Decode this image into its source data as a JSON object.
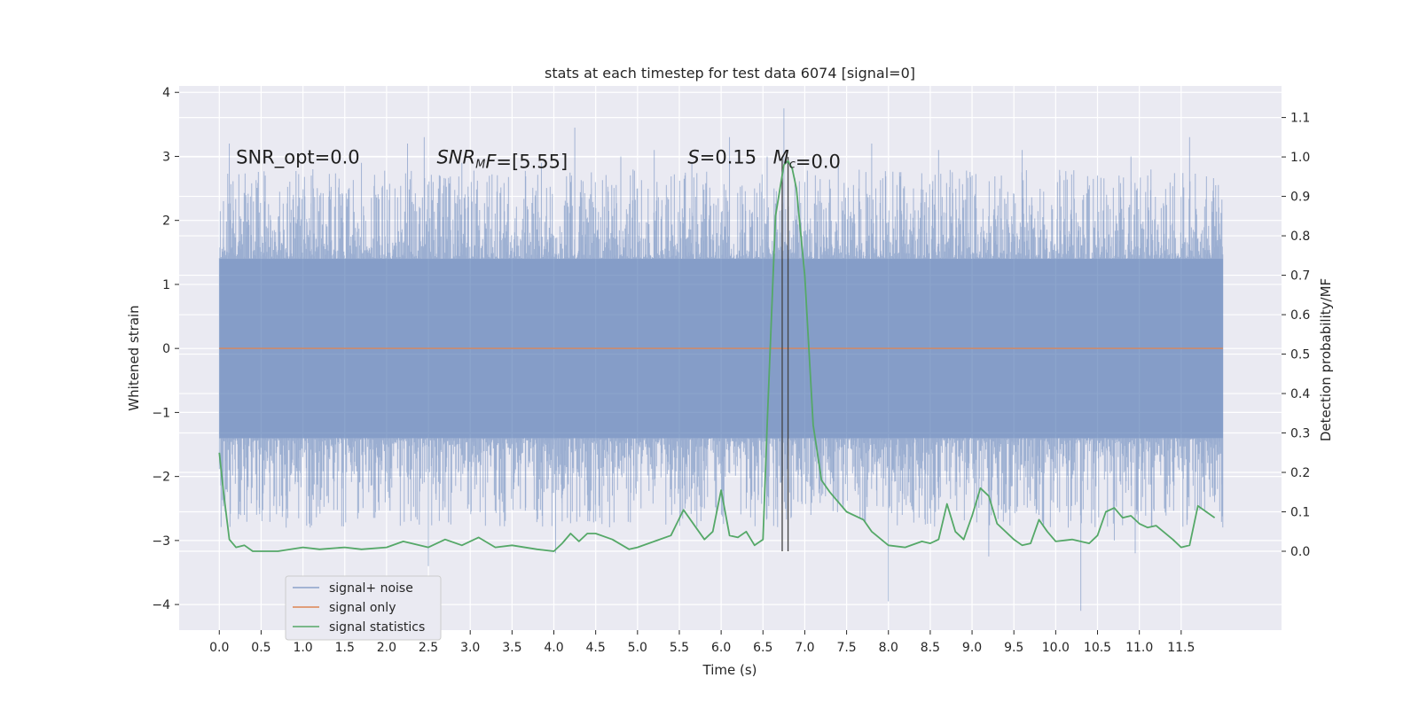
{
  "chart_data": {
    "type": "line",
    "title": "stats at each timestep for test data 6074 [signal=0]",
    "xlabel": "Time (s)",
    "ylabel": "Whitened strain",
    "y2label": "Detection probability/MF",
    "xlim": [
      -0.48,
      12.7
    ],
    "ylim": [
      -4.4,
      4.1
    ],
    "y2lim": [
      -0.2,
      1.18
    ],
    "x_ticks": [
      0.0,
      0.5,
      1.0,
      1.5,
      2.0,
      2.5,
      3.0,
      3.5,
      4.0,
      4.5,
      5.0,
      5.5,
      6.0,
      6.5,
      7.0,
      7.5,
      8.0,
      8.5,
      9.0,
      9.5,
      10.0,
      10.5,
      11.0,
      11.5
    ],
    "x_tick_labels": [
      "0.0",
      "0.5",
      "1.0",
      "1.5",
      "2.0",
      "2.5",
      "3.0",
      "3.5",
      "4.0",
      "4.5",
      "5.0",
      "5.5",
      "6.0",
      "6.5",
      "7.0",
      "7.5",
      "8.0",
      "8.5",
      "9.0",
      "9.5",
      "10.0",
      "10.5",
      "11.0",
      "11.5"
    ],
    "y_ticks": [
      -4,
      -3,
      -2,
      -1,
      0,
      1,
      2,
      3,
      4
    ],
    "y_tick_labels": [
      "−4",
      "−3",
      "−2",
      "−1",
      "0",
      "1",
      "2",
      "3",
      "4"
    ],
    "y2_ticks": [
      0.0,
      0.1,
      0.2,
      0.3,
      0.4,
      0.5,
      0.6,
      0.7,
      0.8,
      0.9,
      1.0,
      1.1
    ],
    "y2_tick_labels": [
      "0.0",
      "0.1",
      "0.2",
      "0.3",
      "0.4",
      "0.5",
      "0.6",
      "0.7",
      "0.8",
      "0.9",
      "1.0",
      "1.1"
    ],
    "grid": true,
    "legend_position": "bottom-left",
    "series": [
      {
        "name": "signal+ noise",
        "color": "#4c72b0",
        "axis": "left",
        "kind": "noise",
        "x_range": [
          0.0,
          12.0
        ],
        "envelope_min": [
          [
            0.0,
            -1.4
          ],
          [
            12.0,
            -1.4
          ]
        ],
        "envelope_max": [
          [
            0.0,
            1.4
          ],
          [
            12.0,
            1.4
          ]
        ],
        "spikes": [
          [
            0.12,
            3.2
          ],
          [
            0.05,
            2.3
          ],
          [
            0.3,
            -2.6
          ],
          [
            0.55,
            2.7
          ],
          [
            0.8,
            -2.8
          ],
          [
            1.1,
            2.7
          ],
          [
            1.3,
            -2.3
          ],
          [
            1.7,
            2.9
          ],
          [
            1.9,
            -2.4
          ],
          [
            2.1,
            2.5
          ],
          [
            2.25,
            3.2
          ],
          [
            2.45,
            3.3
          ],
          [
            2.5,
            -3.4
          ],
          [
            2.7,
            -2.4
          ],
          [
            2.9,
            2.9
          ],
          [
            3.2,
            2.6
          ],
          [
            3.35,
            -2.3
          ],
          [
            3.6,
            -2.3
          ],
          [
            3.85,
            2.9
          ],
          [
            4.02,
            -3.2
          ],
          [
            4.1,
            -2.7
          ],
          [
            4.2,
            2.6
          ],
          [
            4.25,
            3.45
          ],
          [
            4.45,
            2.5
          ],
          [
            4.5,
            -2.7
          ],
          [
            4.7,
            -2.3
          ],
          [
            4.8,
            3.0
          ],
          [
            5.0,
            2.5
          ],
          [
            5.2,
            3.1
          ],
          [
            5.4,
            -2.2
          ],
          [
            5.65,
            2.9
          ],
          [
            5.8,
            -2.5
          ],
          [
            6.1,
            3.3
          ],
          [
            6.3,
            -2.5
          ],
          [
            6.4,
            2.5
          ],
          [
            6.55,
            3.0
          ],
          [
            6.75,
            3.75
          ],
          [
            6.8,
            -3.0
          ],
          [
            7.0,
            2.6
          ],
          [
            7.2,
            -2.3
          ],
          [
            7.4,
            3.0
          ],
          [
            7.6,
            -2.2
          ],
          [
            7.8,
            3.2
          ],
          [
            7.85,
            2.5
          ],
          [
            8.0,
            -3.95
          ],
          [
            8.3,
            2.5
          ],
          [
            8.4,
            -2.3
          ],
          [
            8.6,
            3.1
          ],
          [
            8.8,
            -2.3
          ],
          [
            9.0,
            2.7
          ],
          [
            9.2,
            -3.25
          ],
          [
            9.35,
            2.7
          ],
          [
            9.6,
            3.1
          ],
          [
            9.8,
            -2.6
          ],
          [
            10.05,
            2.7
          ],
          [
            10.15,
            -2.8
          ],
          [
            10.3,
            -4.1
          ],
          [
            10.5,
            2.7
          ],
          [
            10.7,
            -3.0
          ],
          [
            10.9,
            3.0
          ],
          [
            10.95,
            -3.2
          ],
          [
            11.1,
            2.7
          ],
          [
            11.3,
            -2.5
          ],
          [
            11.6,
            3.3
          ],
          [
            11.8,
            2.3
          ],
          [
            11.9,
            -2.4
          ],
          [
            11.95,
            2.2
          ]
        ]
      },
      {
        "name": "signal only",
        "color": "#dd8452",
        "axis": "left",
        "x": [
          0.0,
          12.0
        ],
        "y": [
          0.0,
          0.0
        ]
      },
      {
        "name": "signal statistics",
        "color": "#55a868",
        "axis": "right",
        "x": [
          0.0,
          0.05,
          0.12,
          0.2,
          0.3,
          0.4,
          0.5,
          0.7,
          1.0,
          1.2,
          1.5,
          1.7,
          2.0,
          2.2,
          2.5,
          2.7,
          2.9,
          3.1,
          3.3,
          3.5,
          3.8,
          4.0,
          4.1,
          4.2,
          4.3,
          4.4,
          4.5,
          4.7,
          4.9,
          5.0,
          5.2,
          5.4,
          5.55,
          5.7,
          5.8,
          5.9,
          6.0,
          6.1,
          6.2,
          6.3,
          6.4,
          6.5,
          6.55,
          6.65,
          6.75,
          6.8,
          6.85,
          6.9,
          7.0,
          7.1,
          7.2,
          7.3,
          7.5,
          7.7,
          7.8,
          8.0,
          8.2,
          8.4,
          8.5,
          8.6,
          8.7,
          8.8,
          8.9,
          9.0,
          9.1,
          9.2,
          9.3,
          9.5,
          9.6,
          9.7,
          9.8,
          9.9,
          10.0,
          10.2,
          10.4,
          10.5,
          10.6,
          10.7,
          10.8,
          10.9,
          11.0,
          11.1,
          11.2,
          11.4,
          11.5,
          11.6,
          11.7,
          11.8,
          11.9
        ],
        "y": [
          0.25,
          0.15,
          0.03,
          0.01,
          0.015,
          0.0,
          0.0,
          0.0,
          0.01,
          0.005,
          0.01,
          0.005,
          0.01,
          0.025,
          0.01,
          0.03,
          0.015,
          0.035,
          0.01,
          0.015,
          0.005,
          0.0,
          0.02,
          0.045,
          0.025,
          0.045,
          0.045,
          0.03,
          0.005,
          0.01,
          0.025,
          0.04,
          0.105,
          0.06,
          0.03,
          0.05,
          0.155,
          0.04,
          0.035,
          0.05,
          0.015,
          0.03,
          0.32,
          0.85,
          0.98,
          0.99,
          0.97,
          0.92,
          0.7,
          0.32,
          0.18,
          0.15,
          0.1,
          0.08,
          0.05,
          0.015,
          0.01,
          0.025,
          0.02,
          0.03,
          0.12,
          0.05,
          0.03,
          0.09,
          0.16,
          0.14,
          0.07,
          0.03,
          0.015,
          0.02,
          0.08,
          0.05,
          0.025,
          0.03,
          0.02,
          0.04,
          0.1,
          0.11,
          0.085,
          0.09,
          0.07,
          0.06,
          0.065,
          0.03,
          0.01,
          0.015,
          0.115,
          0.1,
          0.085
        ]
      }
    ],
    "vlines": [
      6.73,
      6.8
    ],
    "annotations": [
      {
        "x": 0.2,
        "y": 3.0,
        "parts": [
          {
            "t": "SNR_opt=0.0",
            "it": false
          }
        ]
      },
      {
        "x": 2.6,
        "y": 3.0,
        "parts": [
          {
            "t": "SNR",
            "it": true
          },
          {
            "t": "M",
            "it": true,
            "sub": true
          },
          {
            "t": "F",
            "it": true
          },
          {
            "t": "=[5.55]",
            "it": false
          }
        ]
      },
      {
        "x": 5.6,
        "y": 3.0,
        "parts": [
          {
            "t": "S",
            "it": true
          },
          {
            "t": "=0.15",
            "it": false
          }
        ]
      },
      {
        "x": 6.62,
        "y": 3.0,
        "parts": [
          {
            "t": "M",
            "it": true
          },
          {
            "t": "c",
            "it": true,
            "sub": true
          },
          {
            "t": "=0.0",
            "it": false
          }
        ]
      }
    ]
  }
}
